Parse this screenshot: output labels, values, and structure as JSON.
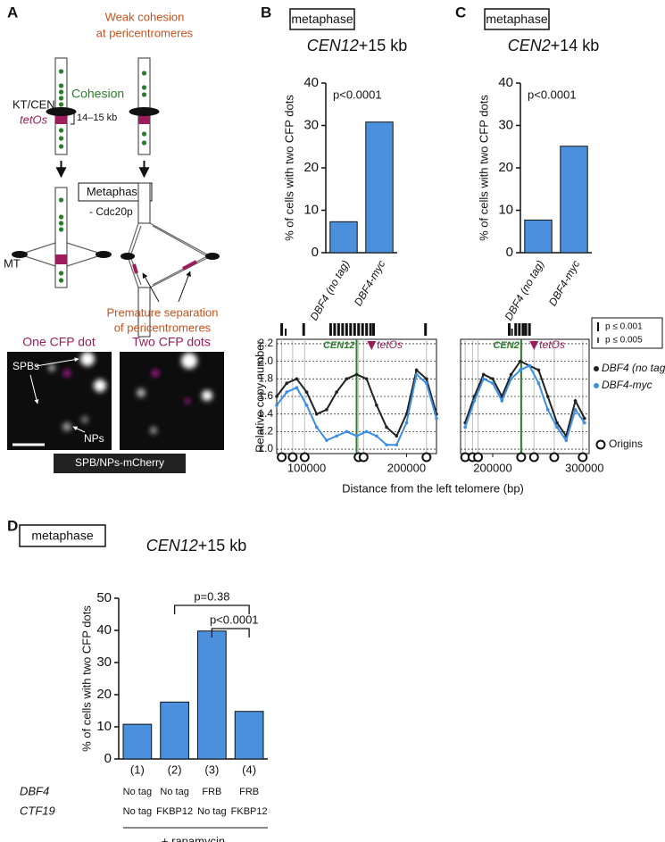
{
  "diagram": {
    "panel": "A",
    "top_note": [
      "Weak cohesion",
      "at pericentromeres"
    ],
    "cohesion": "Cohesion",
    "kt": "KT/CEN",
    "tetos": "tetOs",
    "distance": "14–15 kb",
    "metaphase": "Metaphase",
    "cdc20": "- Cdc20p",
    "mt": "MT",
    "separation": [
      "Premature separation",
      "of pericentromeres"
    ],
    "images": [
      {
        "title": "One CFP dot"
      },
      {
        "title": "Two CFP dots"
      }
    ],
    "spbs": "SPBs",
    "nps": "NPs",
    "stain": "SPB/NPs-mCherry"
  },
  "chart_data": [
    {
      "type": "bar",
      "panel": "B",
      "header": "metaphase",
      "title_gene": "CEN12",
      "title_rest": "+15 kb",
      "ylabel": "% of cells with two CFP dots",
      "categories": [
        "DBF4 (no tag)",
        "DBF4-myc"
      ],
      "values": [
        7.3,
        30.8
      ],
      "color": "#4a90dc",
      "ylim": [
        0,
        40
      ],
      "yticks": [
        0,
        10,
        20,
        30,
        40
      ],
      "annotations": [
        "p<0.0001"
      ]
    },
    {
      "type": "bar",
      "panel": "C",
      "header": "metaphase",
      "title_gene": "CEN2",
      "title_rest": "+14 kb",
      "ylabel": "% of cells with two CFP dots",
      "categories": [
        "DBF4 (no tag)",
        "DBF4-myc"
      ],
      "values": [
        7.7,
        25.1
      ],
      "color": "#4a90dc",
      "ylim": [
        0,
        40
      ],
      "yticks": [
        0,
        10,
        20,
        30,
        40
      ],
      "annotations": [
        "p<0.0001"
      ]
    },
    {
      "type": "line",
      "ylabel": "Relative copy number",
      "xlabel": "Distance from the left telomere (bp)",
      "x": [
        70000,
        80000,
        90000,
        100000,
        110000,
        120000,
        130000,
        140000,
        150000,
        160000,
        170000,
        180000,
        190000,
        200000,
        210000,
        220000,
        230000
      ],
      "xlim": [
        70000,
        230000
      ],
      "xticks": [
        100000,
        200000
      ],
      "ylim": [
        0.95,
        2.25
      ],
      "yticks": [
        {
          "value": 1,
          "label": "1.0"
        },
        1.2,
        1.4,
        1.6,
        1.8,
        {
          "value": 2,
          "label": "2.0"
        },
        2.2
      ],
      "grid": true,
      "series": [
        {
          "name": "DBF4 (no tag)",
          "color": "#222222",
          "values": [
            1.6,
            1.75,
            1.8,
            1.65,
            1.4,
            1.45,
            1.65,
            1.8,
            1.85,
            1.8,
            1.5,
            1.25,
            1.15,
            1.4,
            1.9,
            1.8,
            1.4
          ]
        },
        {
          "name": "DBF4-myc",
          "color": "#3a8ee6",
          "values": [
            1.5,
            1.65,
            1.7,
            1.5,
            1.25,
            1.1,
            1.15,
            1.2,
            1.15,
            1.2,
            1.15,
            1.05,
            1.05,
            1.3,
            1.85,
            1.75,
            1.35
          ]
        }
      ],
      "centromere": {
        "label": "CEN12",
        "x": 150000
      },
      "tetos": {
        "label": "tetOs",
        "x": 165000
      },
      "origins": [
        75000,
        86000,
        98000,
        152000,
        157000,
        220000
      ],
      "significance": {
        "p001": [
          75000,
          97000,
          124000,
          128000,
          132000,
          136000,
          140000,
          144000,
          148000,
          152000,
          156000,
          160000,
          164000,
          167000,
          219000
        ],
        "p005": [
          79000
        ]
      }
    },
    {
      "type": "line",
      "x": [
        170000,
        180000,
        190000,
        200000,
        210000,
        220000,
        230000,
        240000,
        250000,
        260000,
        270000,
        280000,
        290000,
        300000
      ],
      "xlim": [
        165000,
        305000
      ],
      "xticks": [
        200000,
        300000
      ],
      "series": [
        {
          "name": "DBF4 (no tag)",
          "color": "#222222",
          "values": [
            1.3,
            1.6,
            1.85,
            1.8,
            1.6,
            1.85,
            2.0,
            1.95,
            1.9,
            1.6,
            1.3,
            1.15,
            1.55,
            1.35
          ]
        },
        {
          "name": "DBF4-myc",
          "color": "#3a8ee6",
          "values": [
            1.25,
            1.55,
            1.8,
            1.75,
            1.55,
            1.8,
            1.9,
            1.95,
            1.75,
            1.45,
            1.25,
            1.1,
            1.45,
            1.3
          ]
        }
      ],
      "centromere": {
        "label": "CEN2",
        "x": 231000
      },
      "tetos": {
        "label": "tetOs",
        "x": 245000
      },
      "origins": [
        170000,
        178000,
        184000,
        231000,
        245000,
        267000,
        298000
      ],
      "significance": {
        "p001": [
          218000,
          225000,
          229000,
          233000,
          236000,
          240000
        ],
        "p005": [
          221000
        ]
      },
      "sig_legend": [
        "p ≤ 0.001",
        "p ≤ 0.005"
      ],
      "origins_label": "Origins"
    },
    {
      "type": "bar",
      "panel": "D",
      "header": "metaphase",
      "title_gene": "CEN12",
      "title_rest": "+15 kb",
      "ylabel": "% of cells with two CFP dots",
      "categories": [
        "(1)",
        "(2)",
        "(3)",
        "(4)"
      ],
      "values": [
        10.8,
        17.7,
        39.8,
        14.8
      ],
      "color": "#4a90dc",
      "ylim": [
        0,
        50
      ],
      "yticks": [
        0,
        10,
        20,
        30,
        40,
        50
      ],
      "annotations": [
        "p=0.38",
        "p<0.0001"
      ],
      "table": [
        {
          "label": "DBF4",
          "cells": [
            "No tag",
            "No tag",
            "FRB",
            "FRB"
          ]
        },
        {
          "label": "CTF19",
          "cells": [
            "No tag",
            "FKBP12",
            "No tag",
            "FKBP12"
          ]
        }
      ],
      "footnote": "+ rapamycin"
    }
  ]
}
